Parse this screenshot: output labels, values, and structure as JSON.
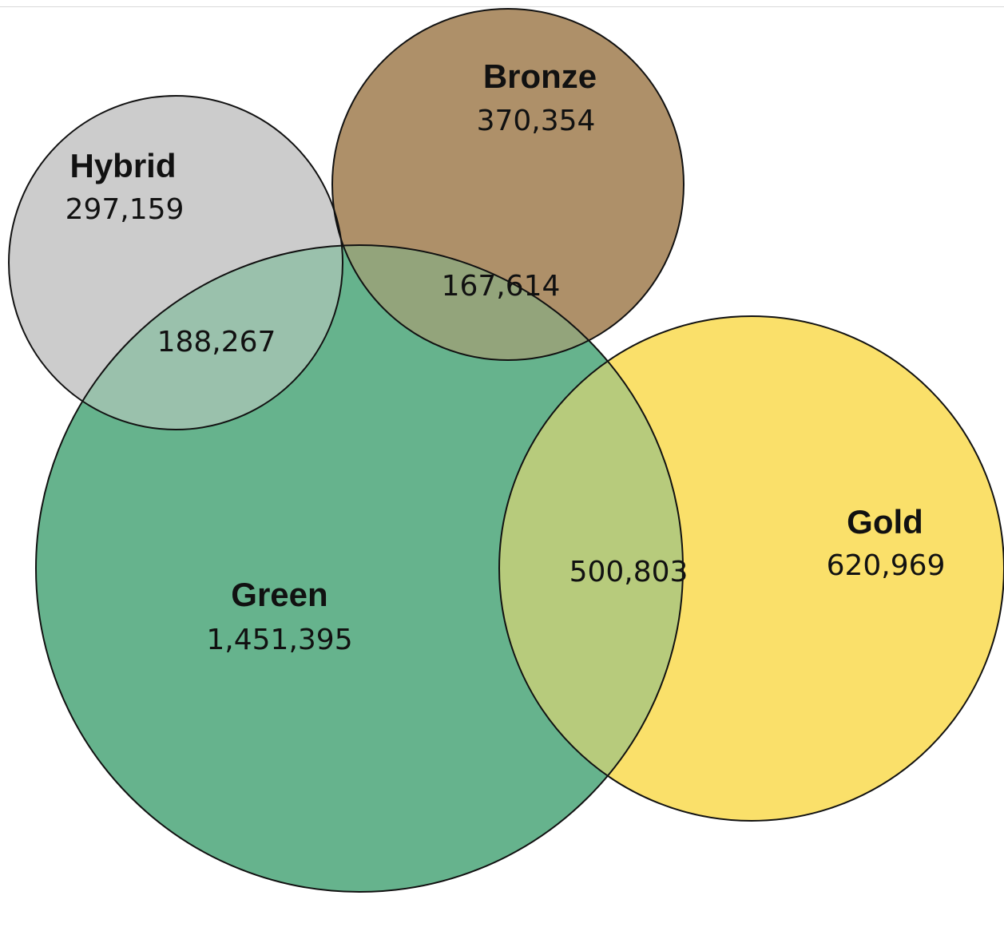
{
  "sets": {
    "green": {
      "name": "Green",
      "count": "1,451,395",
      "color": "#66b38d"
    },
    "gold": {
      "name": "Gold",
      "count": "620,969",
      "color": "#fae06a"
    },
    "bronze": {
      "name": "Bronze",
      "count": "370,354",
      "color": "#ae9069"
    },
    "hybrid": {
      "name": "Hybrid",
      "count": "297,159",
      "color": "#cccccc"
    }
  },
  "overlaps": {
    "hybrid_green": {
      "count": "188,267",
      "color": "#9ac1ac"
    },
    "bronze_green": {
      "count": "167,614",
      "color": "#93a47b"
    },
    "gold_green": {
      "count": "500,803",
      "color": "#b7cb7c"
    }
  }
}
